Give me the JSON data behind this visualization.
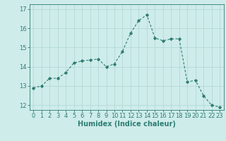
{
  "x": [
    0,
    1,
    2,
    3,
    4,
    5,
    6,
    7,
    8,
    9,
    10,
    11,
    12,
    13,
    14,
    15,
    16,
    17,
    18,
    19,
    20,
    21,
    22,
    23
  ],
  "y": [
    12.9,
    13.0,
    13.4,
    13.4,
    13.7,
    14.2,
    14.3,
    14.35,
    14.4,
    14.0,
    14.15,
    14.8,
    15.75,
    16.4,
    16.7,
    15.5,
    15.35,
    15.45,
    15.45,
    13.2,
    13.3,
    12.5,
    12.0,
    11.9
  ],
  "line_color": "#2e7d72",
  "marker": "D",
  "marker_size": 1.8,
  "bg_color": "#ceecea",
  "grid_color": "#add6d3",
  "xlabel": "Humidex (Indice chaleur)",
  "xlim": [
    -0.5,
    23.5
  ],
  "ylim": [
    11.75,
    17.25
  ],
  "yticks": [
    12,
    13,
    14,
    15,
    16,
    17
  ],
  "xticks": [
    0,
    1,
    2,
    3,
    4,
    5,
    6,
    7,
    8,
    9,
    10,
    11,
    12,
    13,
    14,
    15,
    16,
    17,
    18,
    19,
    20,
    21,
    22,
    23
  ],
  "xlabel_fontsize": 7,
  "tick_fontsize": 6,
  "line_width": 0.8,
  "fig_width": 3.2,
  "fig_height": 2.0,
  "dpi": 100
}
